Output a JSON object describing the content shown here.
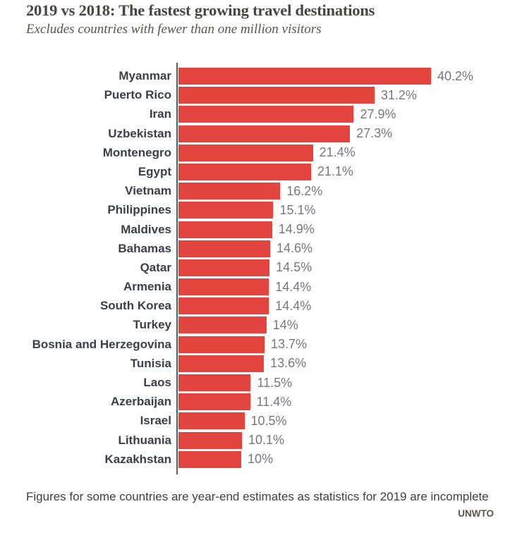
{
  "header": {
    "title": "2019 vs 2018: The fastest growing travel destinations",
    "subtitle": "Excludes countries with fewer than one million visitors"
  },
  "chart_data": {
    "type": "bar",
    "orientation": "horizontal",
    "title": "2019 vs 2018: The fastest growing travel destinations",
    "subtitle": "Excludes countries with fewer than one million visitors",
    "categories": [
      "Myanmar",
      "Puerto Rico",
      "Iran",
      "Uzbekistan",
      "Montenegro",
      "Egypt",
      "Vietnam",
      "Philippines",
      "Maldives",
      "Bahamas",
      "Qatar",
      "Armenia",
      "South Korea",
      "Turkey",
      "Bosnia and Herzegovina",
      "Tunisia",
      "Laos",
      "Azerbaijan",
      "Israel",
      "Lithuania",
      "Kazakhstan"
    ],
    "values": [
      40.2,
      31.2,
      27.9,
      27.3,
      21.4,
      21.1,
      16.2,
      15.1,
      14.9,
      14.6,
      14.5,
      14.4,
      14.4,
      14,
      13.7,
      13.6,
      11.5,
      11.4,
      10.5,
      10.1,
      10
    ],
    "value_labels": [
      "40.2%",
      "31.2%",
      "27.9%",
      "27.3%",
      "21.4%",
      "21.1%",
      "16.2%",
      "15.1%",
      "14.9%",
      "14.6%",
      "14.5%",
      "14.4%",
      "14.4%",
      "14%",
      "13.7%",
      "13.6%",
      "11.5%",
      "11.4%",
      "10.5%",
      "10.1%",
      "10%"
    ],
    "xlabel": "",
    "ylabel": "",
    "xlim": [
      0,
      42
    ],
    "grid": false,
    "legend": false,
    "bar_color": "#e2453d"
  },
  "footer": {
    "note": "Figures for some countries are year-end estimates as statistics for 2019 are incomplete",
    "source": "UNWTO"
  },
  "colors": {
    "bar": "#e2453d",
    "title_text": "#4a443c",
    "subtitle_text": "#5a544c",
    "category_label": "#39404a",
    "value_label": "#75787f",
    "axis_line": "#5f5d5a",
    "background": "#ffffff"
  }
}
